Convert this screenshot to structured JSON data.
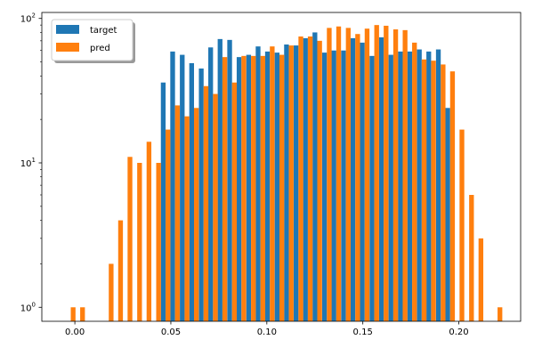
{
  "chart_data": {
    "type": "bar",
    "y_scale": "log",
    "xlim": [
      -0.0172,
      0.2322
    ],
    "ylim": [
      0.8,
      110
    ],
    "grid": false,
    "legend_position": "top-left",
    "colors": {
      "target": "#1f77b4",
      "pred": "#ff7f0e"
    },
    "x_ticks": [
      0.0,
      0.05,
      0.1,
      0.15,
      0.2
    ],
    "x_tick_labels": [
      "0.00",
      "0.05",
      "0.10",
      "0.15",
      "0.20"
    ],
    "y_ticks": [
      1,
      10,
      100
    ],
    "y_tick_labels": [
      {
        "base": "10",
        "exp": "0"
      },
      {
        "base": "10",
        "exp": "1"
      },
      {
        "base": "10",
        "exp": "2"
      }
    ],
    "bin_width": 0.00494,
    "bin_starts": [
      -0.0046,
      0.0003,
      0.0053,
      0.0102,
      0.0152,
      0.0201,
      0.025,
      0.03,
      0.0349,
      0.0399,
      0.0448,
      0.0497,
      0.0547,
      0.0596,
      0.0646,
      0.0695,
      0.0744,
      0.0794,
      0.0843,
      0.0893,
      0.0942,
      0.0991,
      0.1041,
      0.109,
      0.114,
      0.1189,
      0.1238,
      0.1288,
      0.1337,
      0.1387,
      0.1436,
      0.1485,
      0.1535,
      0.1584,
      0.1634,
      0.1683,
      0.1732,
      0.1782,
      0.1831,
      0.1881,
      0.193,
      0.1979,
      0.2029,
      0.2078,
      0.2128,
      0.2177
    ],
    "series": [
      {
        "name": "target",
        "values": [
          0,
          0,
          0,
          0,
          0,
          0,
          0,
          0,
          0,
          0,
          36,
          59,
          56,
          49,
          45,
          63,
          72,
          71,
          54,
          56,
          64,
          59,
          58,
          66,
          65,
          73,
          80,
          58,
          60,
          60,
          73,
          68,
          55,
          74,
          56,
          59,
          59,
          61,
          59,
          61,
          24,
          0,
          0,
          0,
          0,
          0
        ]
      },
      {
        "name": "pred",
        "values": [
          1,
          1,
          0,
          0,
          2,
          4,
          11,
          10,
          14,
          10,
          17,
          25,
          21,
          24,
          34,
          30,
          54,
          36,
          55,
          55,
          55,
          64,
          56,
          65,
          75,
          75,
          70,
          86,
          88,
          86,
          78,
          85,
          90,
          89,
          84,
          83,
          68,
          52,
          51,
          48,
          43,
          17,
          6,
          3,
          0,
          1
        ]
      }
    ]
  }
}
